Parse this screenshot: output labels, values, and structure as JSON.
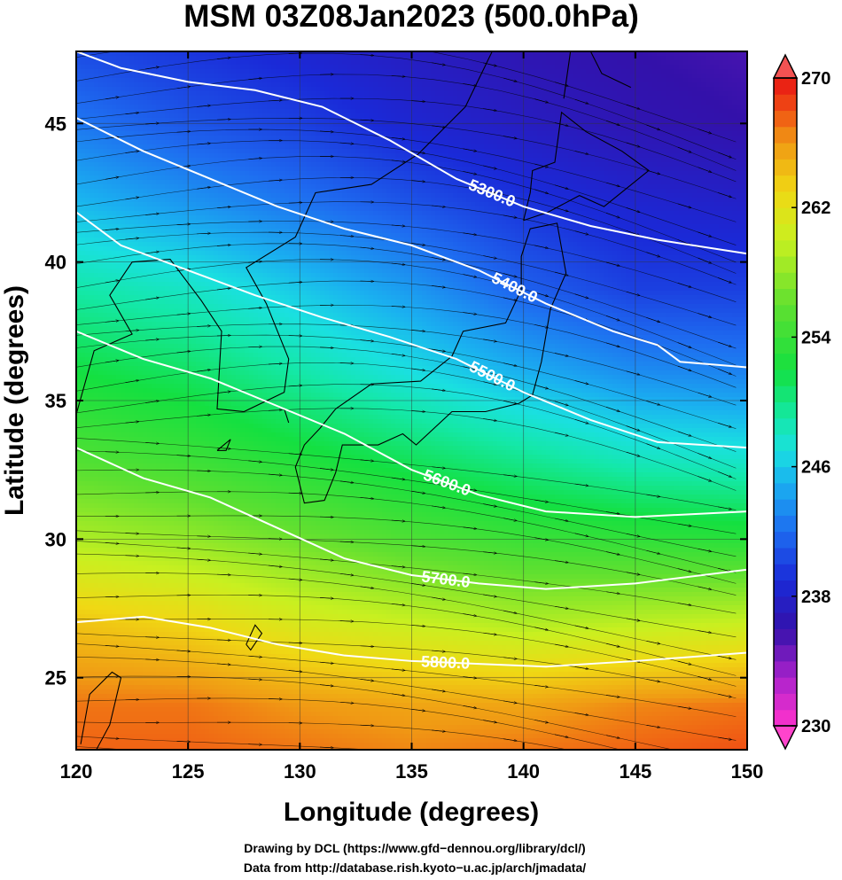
{
  "chart_data": {
    "type": "heatmap",
    "title": "MSM 03Z08Jan2023 (500.0hPa)",
    "xlabel": "Longitude (degrees)",
    "ylabel": "Latitude  (degrees)",
    "xlim": [
      120,
      150
    ],
    "ylim": [
      22.4,
      47.6
    ],
    "x_ticks": [
      "120",
      "125",
      "130",
      "135",
      "140",
      "145",
      "150"
    ],
    "y_ticks": [
      "25",
      "30",
      "35",
      "40",
      "45"
    ],
    "colorbar": {
      "range": [
        230,
        270
      ],
      "tick_labels": [
        "270",
        "262",
        "254",
        "246",
        "238",
        "230"
      ],
      "color_stops": [
        {
          "value": 230,
          "color": "#ff33cc"
        },
        {
          "value": 233,
          "color": "#aa22cc"
        },
        {
          "value": 236,
          "color": "#3311aa"
        },
        {
          "value": 239,
          "color": "#1a2ad8"
        },
        {
          "value": 242,
          "color": "#1e6cf0"
        },
        {
          "value": 245,
          "color": "#1ab0f0"
        },
        {
          "value": 247,
          "color": "#1ae0e0"
        },
        {
          "value": 249,
          "color": "#14e8a8"
        },
        {
          "value": 252,
          "color": "#14e040"
        },
        {
          "value": 256,
          "color": "#60e030"
        },
        {
          "value": 260,
          "color": "#c8f020"
        },
        {
          "value": 263,
          "color": "#f0d814"
        },
        {
          "value": 266,
          "color": "#f09a14"
        },
        {
          "value": 268,
          "color": "#f05014"
        },
        {
          "value": 270,
          "color": "#e81414"
        }
      ]
    },
    "temperature_field_rows": [
      {
        "lat": 47.6,
        "values": [
          240.5,
          239.5,
          238.5,
          237.5,
          236.5,
          236,
          235.5
        ]
      },
      {
        "lat": 45,
        "values": [
          242.5,
          241,
          240,
          238.5,
          237.5,
          236.5,
          236
        ]
      },
      {
        "lat": 42,
        "values": [
          245.5,
          244,
          242.5,
          241,
          239.5,
          238.5,
          238
        ]
      },
      {
        "lat": 39,
        "values": [
          249,
          248,
          246,
          244,
          241.5,
          240,
          240
        ]
      },
      {
        "lat": 36,
        "values": [
          252,
          251,
          249,
          247,
          245,
          243.5,
          243
        ]
      },
      {
        "lat": 33,
        "values": [
          255,
          254,
          252.5,
          251,
          249.5,
          248,
          247.5
        ]
      },
      {
        "lat": 30,
        "values": [
          259,
          258,
          256.5,
          255,
          254,
          253.5,
          253
        ]
      },
      {
        "lat": 27,
        "values": [
          264,
          263,
          261,
          260,
          259,
          259.5,
          260
        ]
      },
      {
        "lat": 24,
        "values": [
          267,
          267,
          266,
          265.5,
          265.5,
          266.5,
          267
        ]
      },
      {
        "lat": 22.4,
        "values": [
          267.5,
          267.5,
          267,
          266.5,
          267,
          267.5,
          268
        ]
      }
    ],
    "contours": [
      {
        "label": "5300.0",
        "points": [
          [
            120,
            47.6
          ],
          [
            122,
            47.0
          ],
          [
            125,
            46.5
          ],
          [
            128,
            46.2
          ],
          [
            131,
            45.6
          ],
          [
            134,
            44.4
          ],
          [
            137,
            43.0
          ],
          [
            140,
            42.0
          ],
          [
            143,
            41.3
          ],
          [
            146,
            40.8
          ],
          [
            150,
            40.3
          ]
        ]
      },
      {
        "label": "5400.0",
        "points": [
          [
            120,
            45.2
          ],
          [
            123,
            44.0
          ],
          [
            126,
            43.0
          ],
          [
            129,
            42.0
          ],
          [
            132,
            41.2
          ],
          [
            135,
            40.6
          ],
          [
            138,
            39.7
          ],
          [
            141,
            38.5
          ],
          [
            144,
            37.5
          ],
          [
            146,
            37.0
          ],
          [
            147,
            36.4
          ],
          [
            150,
            36.2
          ]
        ]
      },
      {
        "label": "5500.0",
        "points": [
          [
            120,
            41.8
          ],
          [
            122,
            40.6
          ],
          [
            125,
            39.7
          ],
          [
            128,
            38.8
          ],
          [
            131,
            38.0
          ],
          [
            134,
            37.3
          ],
          [
            137,
            36.5
          ],
          [
            140,
            35.3
          ],
          [
            143,
            34.3
          ],
          [
            146,
            33.5
          ],
          [
            150,
            33.3
          ]
        ]
      },
      {
        "label": "5600.0",
        "points": [
          [
            120,
            37.5
          ],
          [
            123,
            36.5
          ],
          [
            126,
            35.8
          ],
          [
            129,
            34.8
          ],
          [
            132,
            33.8
          ],
          [
            135,
            32.5
          ],
          [
            138,
            31.6
          ],
          [
            141,
            31.0
          ],
          [
            145,
            30.8
          ],
          [
            150,
            31.0
          ]
        ]
      },
      {
        "label": "5700.0",
        "points": [
          [
            120,
            33.3
          ],
          [
            123,
            32.2
          ],
          [
            126,
            31.5
          ],
          [
            129,
            30.4
          ],
          [
            132,
            29.3
          ],
          [
            135,
            28.7
          ],
          [
            138,
            28.4
          ],
          [
            141,
            28.2
          ],
          [
            145,
            28.4
          ],
          [
            150,
            28.9
          ]
        ]
      },
      {
        "label": "5800.0",
        "points": [
          [
            120,
            27.0
          ],
          [
            123,
            27.2
          ],
          [
            126,
            26.8
          ],
          [
            129,
            26.2
          ],
          [
            132,
            25.8
          ],
          [
            135,
            25.6
          ],
          [
            138,
            25.5
          ],
          [
            141,
            25.4
          ],
          [
            145,
            25.6
          ],
          [
            150,
            25.9
          ]
        ]
      }
    ],
    "grid": true
  },
  "credits": {
    "line1": "Drawing by DCL (https://www.gfd−dennou.org/library/dcl/)",
    "line2": "Data from http://database.rish.kyoto−u.ac.jp/arch/jmadata/"
  }
}
